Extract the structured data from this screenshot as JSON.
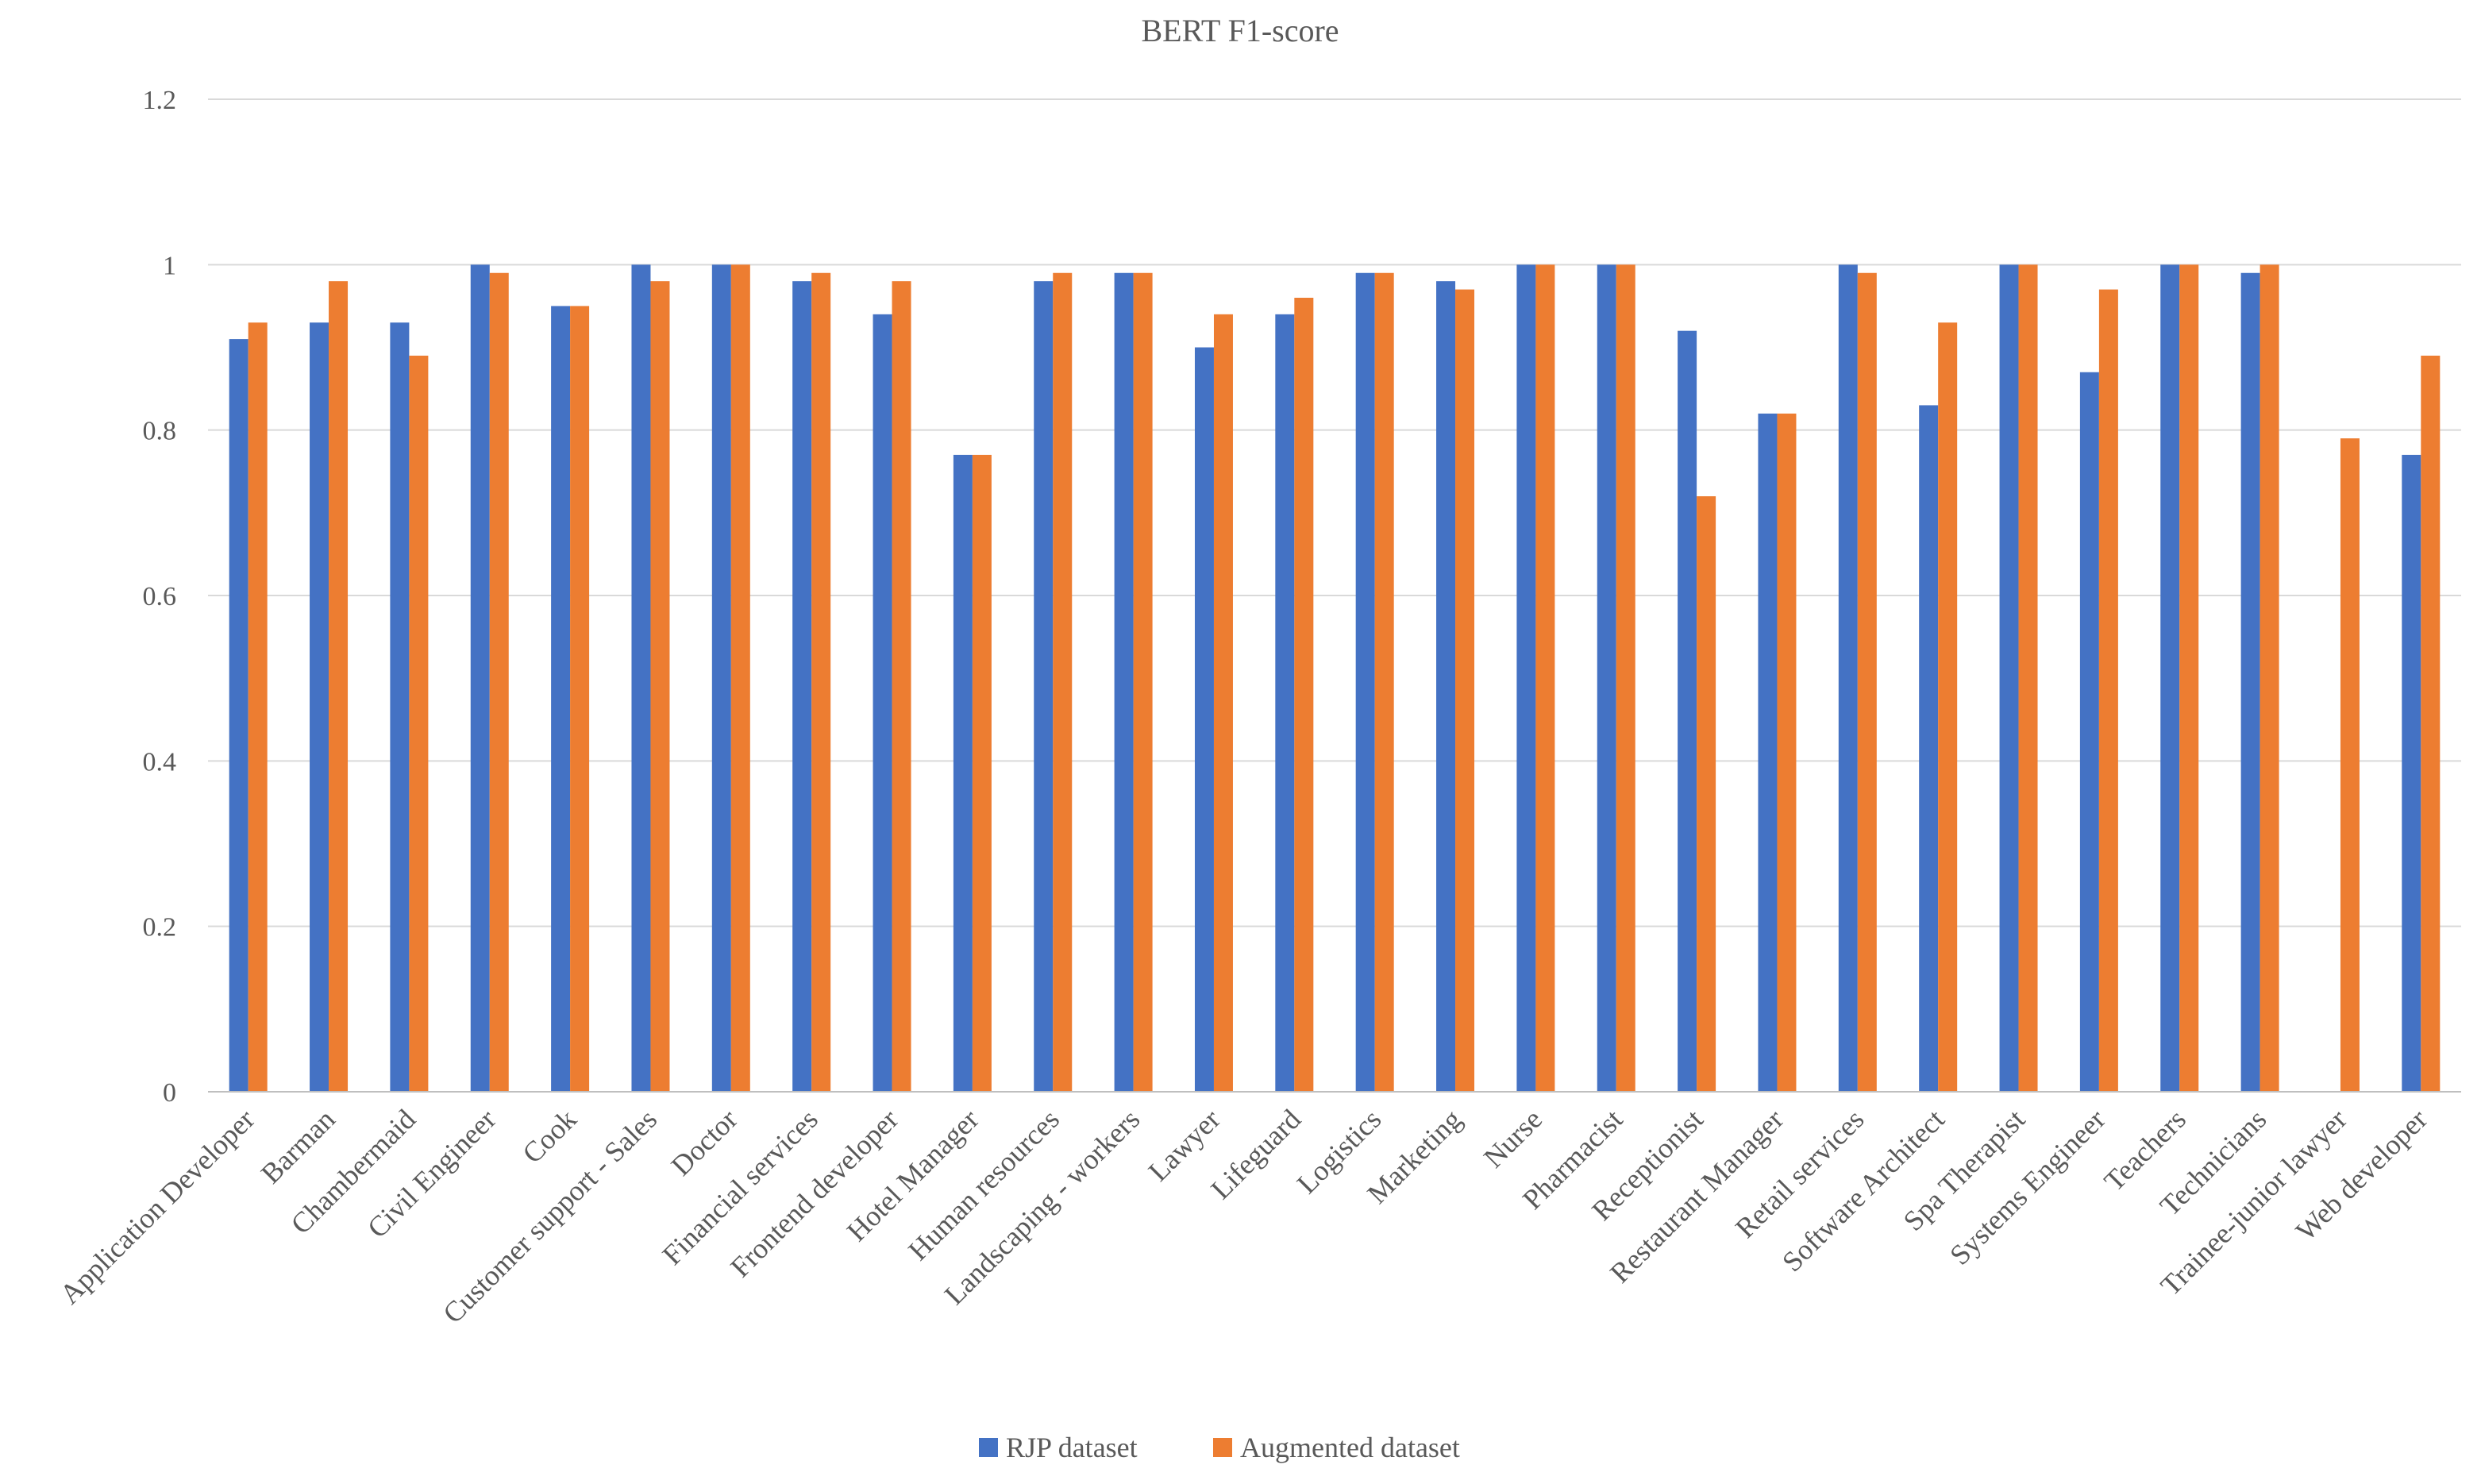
{
  "chart_data": {
    "type": "bar",
    "title": "BERT F1-score",
    "xlabel": "",
    "ylabel": "",
    "ylim": [
      0,
      1.2
    ],
    "yticks": [
      0,
      0.2,
      0.4,
      0.6,
      0.8,
      1,
      1.2
    ],
    "grid": true,
    "legend_position": "bottom-center",
    "categories": [
      "Application Developer",
      "Barman",
      "Chambermaid",
      "Civil Engineer",
      "Cook",
      "Customer support - Sales",
      "Doctor",
      "Financial services",
      "Frontend developer",
      "Hotel Manager",
      "Human resources",
      "Landscaping - workers",
      "Lawyer",
      "Lifeguard",
      "Logistics",
      "Marketing",
      "Nurse",
      "Pharmacist",
      "Receptionist",
      "Restaurant Manager",
      "Retail services",
      "Software Architect",
      "Spa Therapist",
      "Systems Engineer",
      "Teachers",
      "Technicians",
      "Trainee-junior lawyer",
      "Web developer"
    ],
    "series": [
      {
        "name": "RJP dataset",
        "color": "#4472c4",
        "values": [
          0.91,
          0.93,
          0.93,
          1.0,
          0.95,
          1.0,
          1.0,
          0.98,
          0.94,
          0.77,
          0.98,
          0.99,
          0.9,
          0.94,
          0.99,
          0.98,
          1.0,
          1.0,
          0.92,
          0.82,
          1.0,
          0.83,
          1.0,
          0.87,
          1.0,
          0.99,
          0,
          0.77
        ]
      },
      {
        "name": "Augmented dataset",
        "color": "#ed7d31",
        "values": [
          0.93,
          0.98,
          0.89,
          0.99,
          0.95,
          0.98,
          1.0,
          0.99,
          0.98,
          0.77,
          0.99,
          0.99,
          0.94,
          0.96,
          0.99,
          0.97,
          1.0,
          1.0,
          0.72,
          0.82,
          0.99,
          0.93,
          1.0,
          0.97,
          1.0,
          1.0,
          0.79,
          0.89
        ]
      }
    ]
  }
}
